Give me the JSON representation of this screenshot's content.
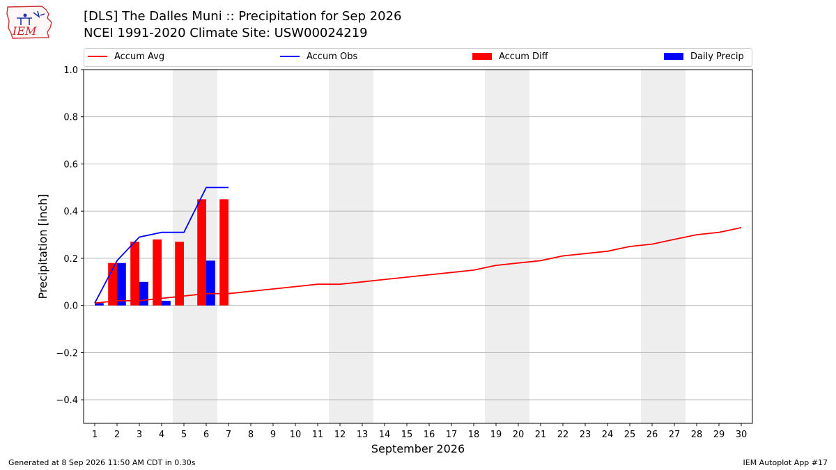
{
  "header": {
    "logo_text": "IEM",
    "title_line1": "[DLS] The Dalles Muni :: Precipitation for Sep 2026",
    "title_line2": "NCEI 1991-2020 Climate Site: USW00024219"
  },
  "legend": {
    "accum_avg": "Accum Avg",
    "accum_obs": "Accum Obs",
    "accum_diff": "Accum Diff",
    "daily_precip": "Daily Precip"
  },
  "colors": {
    "accum_avg": "#ff0000",
    "accum_obs": "#0000ff",
    "accum_diff": "#ff0000",
    "daily_precip": "#0000ff",
    "weekend_band": "#eeeeee",
    "grid": "#b0b0b0"
  },
  "chart_data": {
    "type": "bar",
    "xlabel": "September 2026",
    "ylabel": "Precipitation [inch]",
    "ylim": [
      -0.5,
      1.0
    ],
    "xlim": [
      0.5,
      30.5
    ],
    "yticks": [
      -0.4,
      -0.2,
      0.0,
      0.2,
      0.4,
      0.6,
      0.8,
      1.0
    ],
    "ytick_labels": [
      "−0.4",
      "−0.2",
      "0.0",
      "0.2",
      "0.4",
      "0.6",
      "0.8",
      "1.0"
    ],
    "xticks": [
      1,
      2,
      3,
      4,
      5,
      6,
      7,
      8,
      9,
      10,
      11,
      12,
      13,
      14,
      15,
      16,
      17,
      18,
      19,
      20,
      21,
      22,
      23,
      24,
      25,
      26,
      27,
      28,
      29,
      30
    ],
    "grid": "horizontal",
    "weekend_bands": [
      [
        5,
        6
      ],
      [
        12,
        13
      ],
      [
        19,
        20
      ],
      [
        26,
        27
      ]
    ],
    "series": [
      {
        "name": "Accum Avg",
        "type": "line",
        "x": [
          1,
          2,
          3,
          4,
          5,
          6,
          7,
          8,
          9,
          10,
          11,
          12,
          13,
          14,
          15,
          16,
          17,
          18,
          19,
          20,
          21,
          22,
          23,
          24,
          25,
          26,
          27,
          28,
          29,
          30
        ],
        "values": [
          0.01,
          0.02,
          0.02,
          0.03,
          0.04,
          0.05,
          0.05,
          0.06,
          0.07,
          0.08,
          0.09,
          0.09,
          0.1,
          0.11,
          0.12,
          0.13,
          0.14,
          0.15,
          0.17,
          0.18,
          0.19,
          0.21,
          0.22,
          0.23,
          0.25,
          0.26,
          0.28,
          0.3,
          0.31,
          0.33
        ]
      },
      {
        "name": "Accum Obs",
        "type": "line",
        "x": [
          1,
          2,
          3,
          4,
          5,
          6,
          7
        ],
        "values": [
          0.01,
          0.19,
          0.29,
          0.31,
          0.31,
          0.5,
          0.5
        ]
      },
      {
        "name": "Accum Diff",
        "type": "bar",
        "x": [
          1,
          2,
          3,
          4,
          5,
          6,
          7
        ],
        "values": [
          0.0,
          0.18,
          0.27,
          0.28,
          0.27,
          0.45,
          0.45
        ]
      },
      {
        "name": "Daily Precip",
        "type": "bar",
        "x": [
          1,
          2,
          3,
          4,
          5,
          6,
          7
        ],
        "values": [
          0.01,
          0.18,
          0.1,
          0.02,
          0.0,
          0.19,
          0.0
        ]
      }
    ]
  },
  "footer": {
    "generated": "Generated at 8 Sep 2026 11:50 AM CDT in 0.30s",
    "app": "IEM Autoplot App #17"
  }
}
